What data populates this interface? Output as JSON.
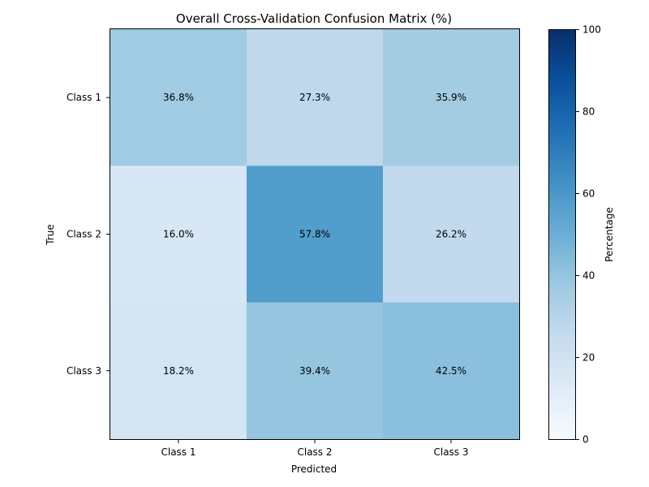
{
  "chart_data": {
    "type": "heatmap",
    "title": "Overall Cross-Validation Confusion Matrix (%)",
    "xlabel": "Predicted",
    "ylabel": "True",
    "x_categories": [
      "Class 1",
      "Class 2",
      "Class 3"
    ],
    "y_categories": [
      "Class 1",
      "Class 2",
      "Class 3"
    ],
    "values": [
      [
        36.8,
        27.3,
        35.9
      ],
      [
        16.0,
        57.8,
        26.2
      ],
      [
        18.2,
        39.4,
        42.5
      ]
    ],
    "cell_labels": [
      [
        "36.8%",
        "27.3%",
        "35.9%"
      ],
      [
        "16.0%",
        "57.8%",
        "26.2%"
      ],
      [
        "18.2%",
        "39.4%",
        "42.5%"
      ]
    ],
    "colorbar": {
      "label": "Percentage",
      "range": [
        0,
        100
      ],
      "ticks": [
        0,
        20,
        40,
        60,
        80,
        100
      ],
      "tick_labels": [
        "0",
        "20",
        "40",
        "60",
        "80",
        "100"
      ],
      "colormap": "Blues"
    }
  }
}
